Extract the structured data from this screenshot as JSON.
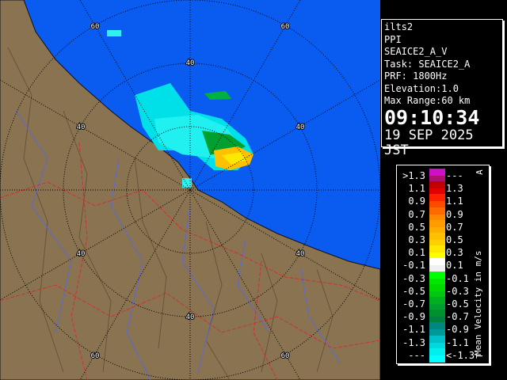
{
  "info": {
    "site": "ilts2",
    "scan_type": "PPI",
    "product": "SEAICE2_A_V",
    "task": "Task: SEAICE2_A",
    "prf": "PRF: 1800Hz",
    "elevation": "Elevation:1.0",
    "max_range": "Max Range:60 km",
    "time": "09:10:34",
    "date": "19 SEP 2025 JST"
  },
  "map": {
    "sea_color": "#0a5cf0",
    "land_color": "#8a7350",
    "ring_labels": [
      "40",
      "40",
      "40",
      "40",
      "40",
      "40",
      "60",
      "60",
      "60",
      "60"
    ]
  },
  "legend": {
    "title": "Mean Velocity in m/s",
    "top_mark": "A",
    "bottom_mark": "T",
    "rows": [
      {
        "left": ">1.3",
        "right": "---",
        "c1": "#d010c8",
        "c2": "#b01070"
      },
      {
        "left": "1.1",
        "right": "1.3",
        "c1": "#c00000",
        "c2": "#e00000"
      },
      {
        "left": "0.9",
        "right": "1.1",
        "c1": "#ff2000",
        "c2": "#ff4800"
      },
      {
        "left": "0.7",
        "right": "0.9",
        "c1": "#ff6a00",
        "c2": "#ff8800"
      },
      {
        "left": "0.5",
        "right": "0.7",
        "c1": "#ff9c00",
        "c2": "#ffae00"
      },
      {
        "left": "0.3",
        "right": "0.5",
        "c1": "#ffc000",
        "c2": "#ffd000"
      },
      {
        "left": "0.1",
        "right": "0.3",
        "c1": "#ffe800",
        "c2": "#ffff00"
      },
      {
        "left": "-0.1",
        "right": "0.1",
        "c1": "#ffffff",
        "c2": "#f0f0f0"
      },
      {
        "left": "-0.3",
        "right": "-0.1",
        "c1": "#00ff00",
        "c2": "#00e800"
      },
      {
        "left": "-0.5",
        "right": "-0.3",
        "c1": "#00d800",
        "c2": "#00c810"
      },
      {
        "left": "-0.7",
        "right": "-0.5",
        "c1": "#00b020",
        "c2": "#00a030"
      },
      {
        "left": "-0.9",
        "right": "-0.7",
        "c1": "#009030",
        "c2": "#008040"
      },
      {
        "left": "-1.1",
        "right": "-0.9",
        "c1": "#008880",
        "c2": "#009898"
      },
      {
        "left": "-1.3",
        "right": "-1.1",
        "c1": "#00c0c8",
        "c2": "#00d8e0"
      },
      {
        "left": "---",
        "right": "<-1.3",
        "c1": "#00f0f0",
        "c2": "#00ffff"
      }
    ]
  }
}
